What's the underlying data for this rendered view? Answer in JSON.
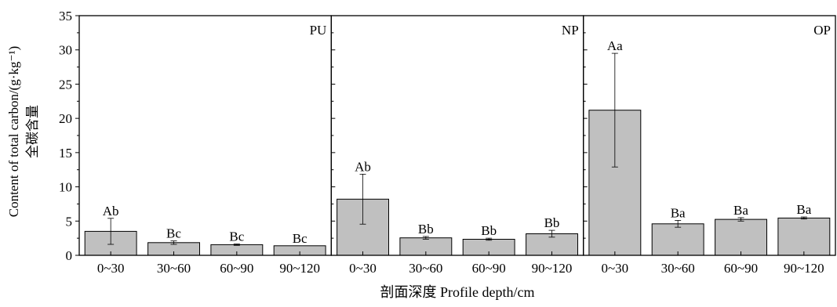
{
  "chart_data": {
    "type": "bar",
    "ylabel_en": "Content of total carbon/(g·kg⁻¹)",
    "ylabel_cn": "全碳含量",
    "xlabel": "剖面深度 Profile depth/cm",
    "ylim": [
      0,
      35
    ],
    "yticks": [
      "0",
      "5",
      "10",
      "15",
      "20",
      "25",
      "30",
      "35"
    ],
    "bar_color": "#c0c0c0",
    "panels": [
      {
        "name": "PU",
        "categories": [
          "0~30",
          "30~60",
          "60~90",
          "90~120"
        ],
        "values": [
          3.5,
          1.85,
          1.55,
          1.4
        ],
        "errors": [
          1.9,
          0.25,
          0.1,
          0.0
        ],
        "labels": [
          "Ab",
          "Bc",
          "Bc",
          "Bc"
        ]
      },
      {
        "name": "NP",
        "categories": [
          "0~30",
          "30~60",
          "60~90",
          "90~120"
        ],
        "values": [
          8.2,
          2.55,
          2.35,
          3.15
        ],
        "errors": [
          3.65,
          0.2,
          0.15,
          0.5
        ],
        "labels": [
          "Ab",
          "Bb",
          "Bb",
          "Bb"
        ]
      },
      {
        "name": "OP",
        "categories": [
          "0~30",
          "30~60",
          "60~90",
          "90~120"
        ],
        "values": [
          21.2,
          4.6,
          5.25,
          5.45
        ],
        "errors": [
          8.3,
          0.5,
          0.25,
          0.15
        ],
        "labels": [
          "Aa",
          "Ba",
          "Ba",
          "Ba"
        ]
      }
    ]
  }
}
